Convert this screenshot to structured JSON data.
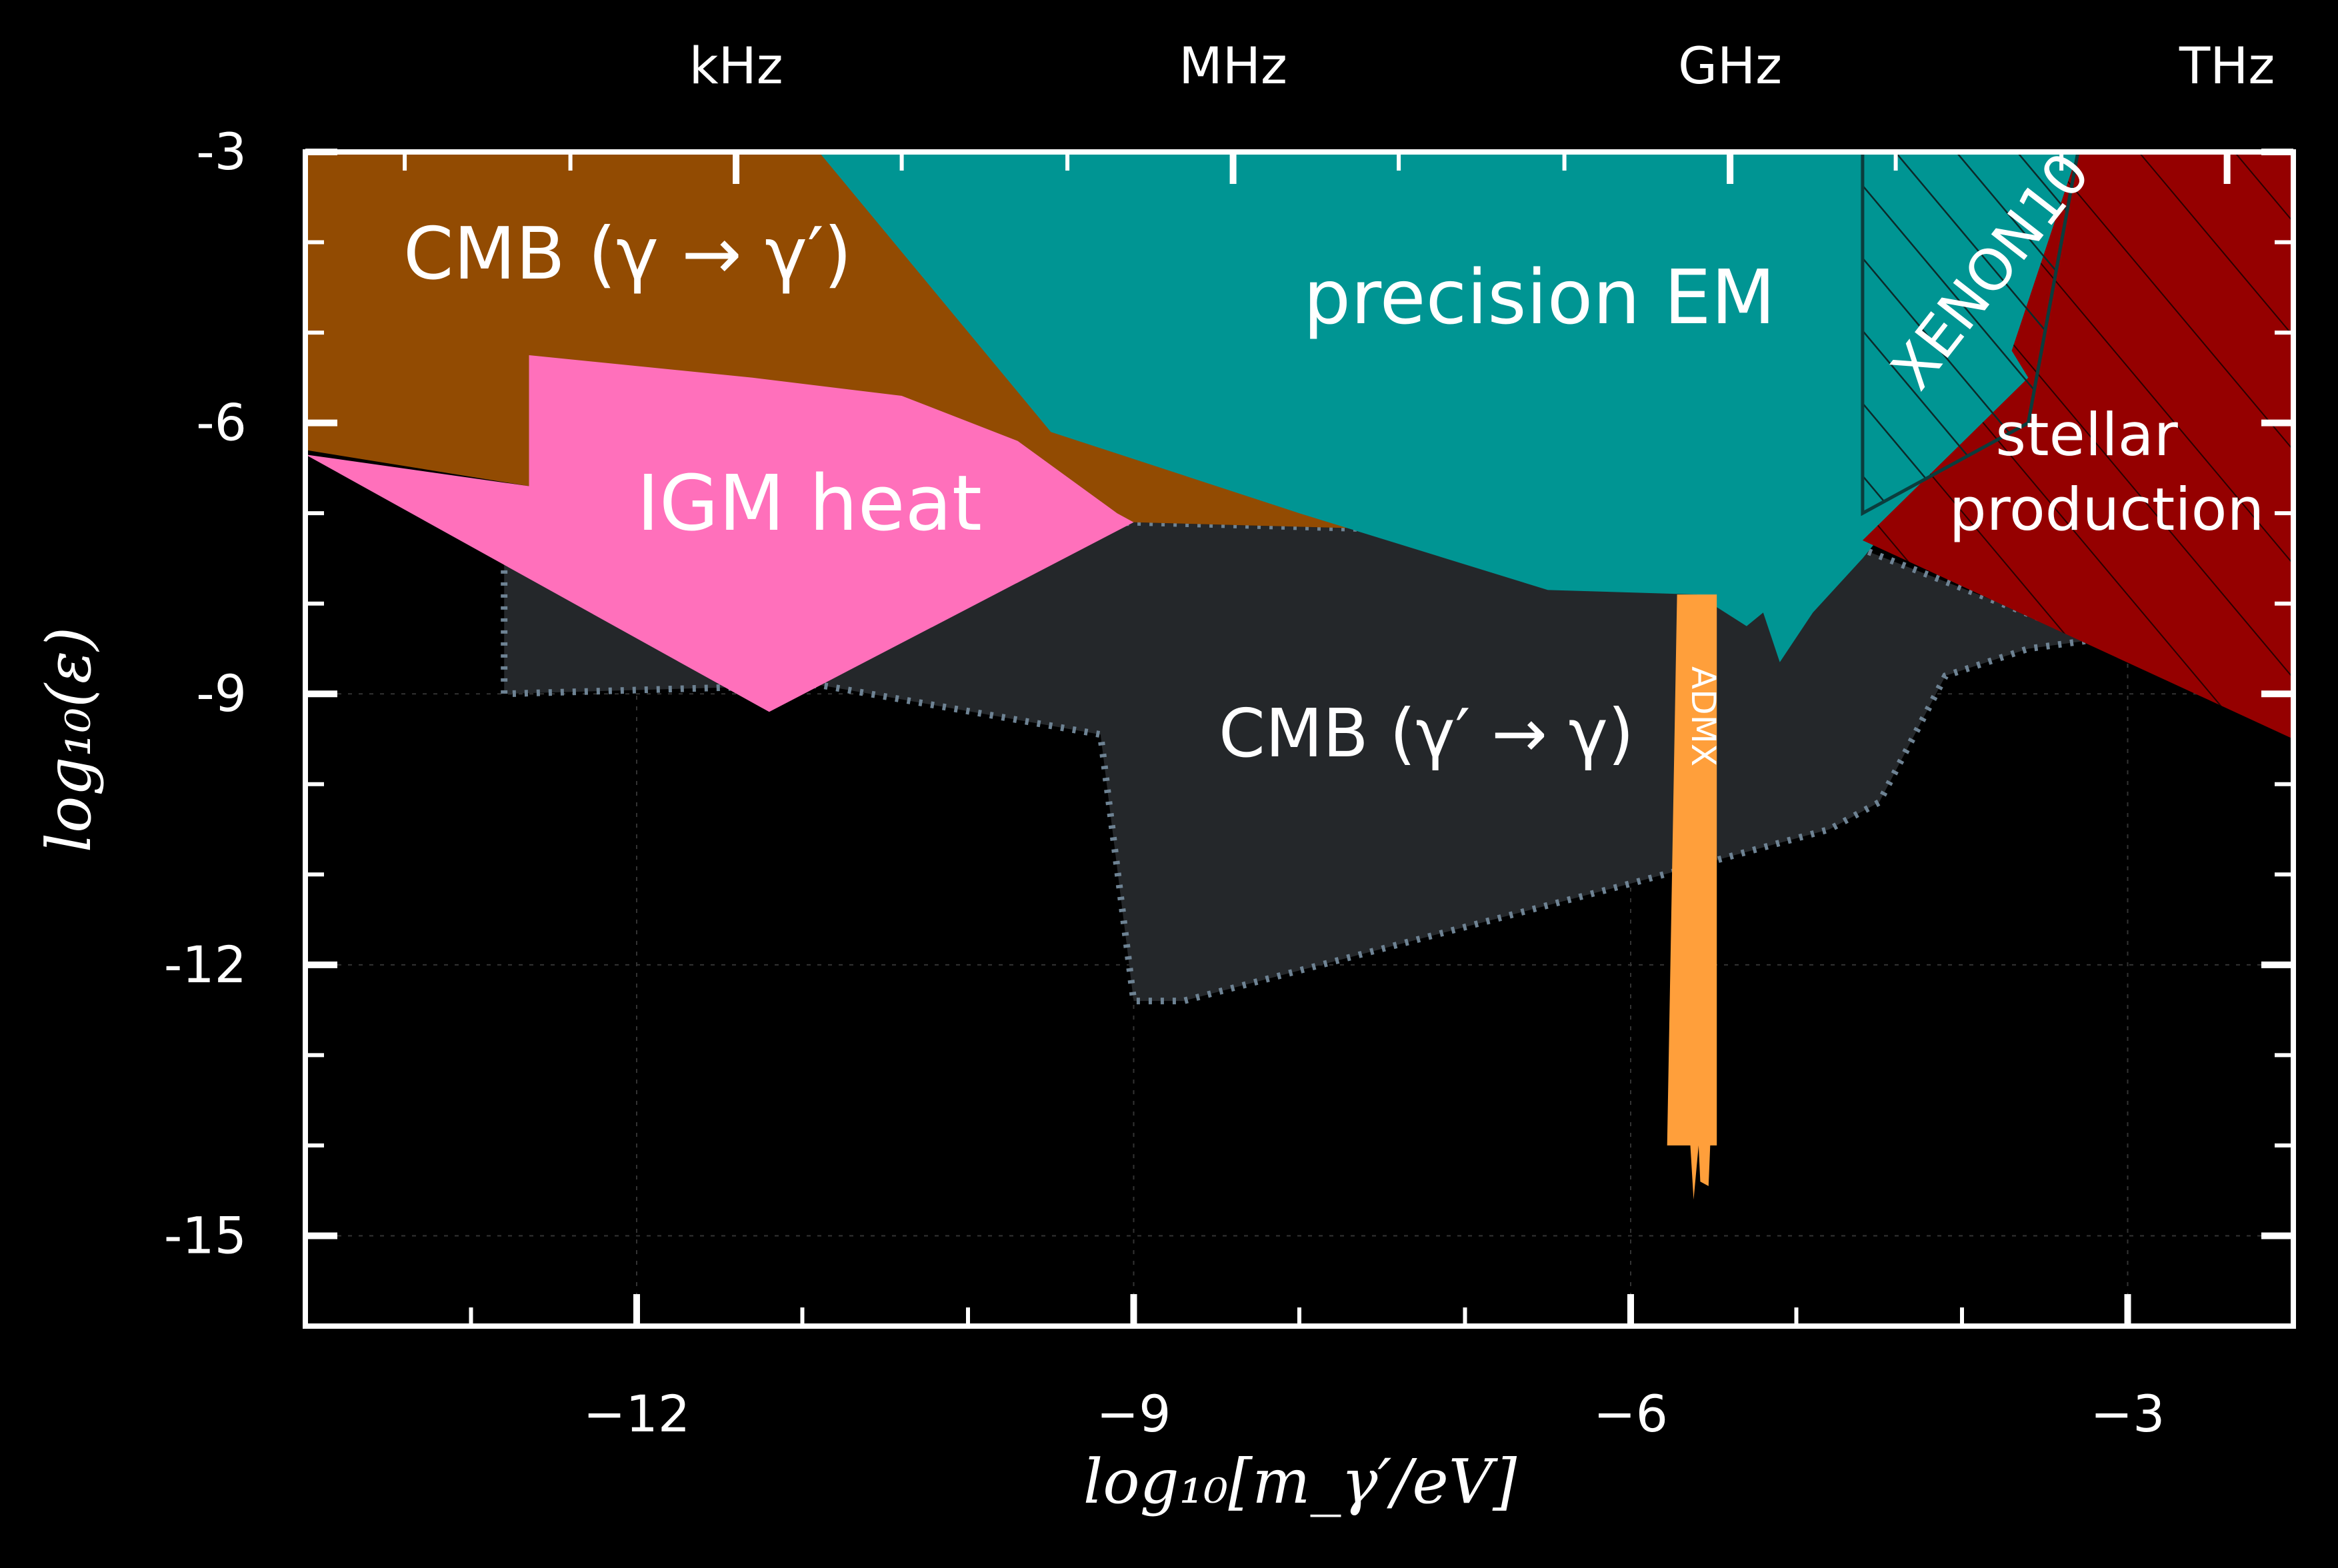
{
  "chart_data": {
    "type": "area",
    "xlabel": "log₁₀[m_γ′/eV]",
    "ylabel": "log₁₀(ε)",
    "xlim": [
      -14,
      -2
    ],
    "ylim": [
      -16,
      -3
    ],
    "x_ticks": [
      -12,
      -9,
      -6,
      -3
    ],
    "x_tick_labels": [
      "−12",
      "−9",
      "−6",
      "−3"
    ],
    "y_ticks": [
      -3,
      -6,
      -9,
      -12,
      -15
    ],
    "y_tick_labels": [
      "-3",
      "-6",
      "-9",
      "-12",
      "-15"
    ],
    "top_axis": {
      "ticks": [
        -11.4,
        -8.4,
        -5.4,
        -2.4
      ],
      "labels": [
        "kHz",
        "MHz",
        "GHz",
        "THz"
      ]
    },
    "grid": true,
    "regions": [
      {
        "id": "cmb-dark-to-photon",
        "label": "CMB (γ′ → γ)",
        "color": "#24272a",
        "border_color": "#6e8394",
        "polygon": [
          [
            -12.8,
            -7.5
          ],
          [
            -12.8,
            -9
          ],
          [
            -10.9,
            -8.9
          ],
          [
            -9.2,
            -9.45
          ],
          [
            -9.0,
            -12.4
          ],
          [
            -8.7,
            -12.4
          ],
          [
            -6.0,
            -11.1
          ],
          [
            -4.8,
            -10.5
          ],
          [
            -4.5,
            -10.2
          ],
          [
            -4.1,
            -8.8
          ],
          [
            -3.6,
            -8.5
          ],
          [
            -3.2,
            -8.4
          ],
          [
            -4.6,
            -7.4
          ],
          [
            -7.0,
            -7.2
          ],
          [
            -9.0,
            -7.1
          ],
          [
            -11.0,
            -7.3
          ]
        ]
      },
      {
        "id": "cmb-photon-to-dark",
        "label": "CMB (γ → γ′)",
        "color": "#924b02",
        "polygon": [
          [
            -14,
            -3
          ],
          [
            -14,
            -6.3
          ],
          [
            -12.65,
            -6.7
          ],
          [
            -12.65,
            -5.9
          ],
          [
            -11.2,
            -6.0
          ],
          [
            -10.5,
            -6.4
          ],
          [
            -9.0,
            -7.1
          ],
          [
            -7.0,
            -7.2
          ],
          [
            -4.6,
            -7.4
          ],
          [
            -5.9,
            -5.6
          ],
          [
            -8.5,
            -4.0
          ],
          [
            -10.2,
            -3.0
          ]
        ]
      },
      {
        "id": "igm-heat",
        "label": "IGM heat",
        "color": "#ff70bb",
        "polygon": [
          [
            -14,
            -6.35
          ],
          [
            -12.65,
            -6.7
          ],
          [
            -12.65,
            -5.25
          ],
          [
            -11.3,
            -5.5
          ],
          [
            -10.4,
            -5.7
          ],
          [
            -9.7,
            -6.2
          ],
          [
            -9.1,
            -7.0
          ],
          [
            -9.0,
            -7.1
          ],
          [
            -11.2,
            -9.2
          ]
        ]
      },
      {
        "id": "precision-em",
        "label": "precision EM",
        "color": "#009593",
        "polygon": [
          [
            -10.9,
            -3
          ],
          [
            -2,
            -3
          ],
          [
            -3.6,
            -6.0
          ],
          [
            -4.2,
            -6.6
          ],
          [
            -4.6,
            -7.5
          ],
          [
            -4.9,
            -8.1
          ],
          [
            -5.1,
            -8.65
          ],
          [
            -5.2,
            -8.1
          ],
          [
            -5.3,
            -8.25
          ],
          [
            -5.6,
            -7.9
          ],
          [
            -6.5,
            -7.85
          ],
          [
            -8.0,
            -7.0
          ],
          [
            -9.5,
            -6.1
          ]
        ]
      },
      {
        "id": "stellar-production",
        "label": "stellar production",
        "label_lines": [
          "stellar",
          "production"
        ],
        "color": "#950000",
        "polygon": [
          [
            -3.3,
            -3
          ],
          [
            -2,
            -3
          ],
          [
            -2,
            -9.5
          ],
          [
            -4.6,
            -7.3
          ],
          [
            -3.6,
            -5.5
          ],
          [
            -3.7,
            -5.2
          ]
        ]
      },
      {
        "id": "admx",
        "label": "ADMX",
        "color": "#ff9f3b",
        "polygon": [
          [
            -5.72,
            -7.9
          ],
          [
            -5.48,
            -7.9
          ],
          [
            -5.48,
            -14.0
          ],
          [
            -5.52,
            -14.0
          ],
          [
            -5.53,
            -14.45
          ],
          [
            -5.58,
            -14.4
          ],
          [
            -5.59,
            -14.0
          ],
          [
            -5.62,
            -14.6
          ],
          [
            -5.64,
            -14.0
          ],
          [
            -5.78,
            -14.0
          ]
        ]
      },
      {
        "id": "xenon10",
        "label": "XENON10",
        "color": "#0b3d3d",
        "hatched": true,
        "polygon": [
          [
            -4.6,
            -3
          ],
          [
            -4.6,
            -7.0
          ],
          [
            -4.2,
            -6.6
          ],
          [
            -3.6,
            -6.0
          ],
          [
            -3.3,
            -3
          ]
        ]
      }
    ]
  }
}
